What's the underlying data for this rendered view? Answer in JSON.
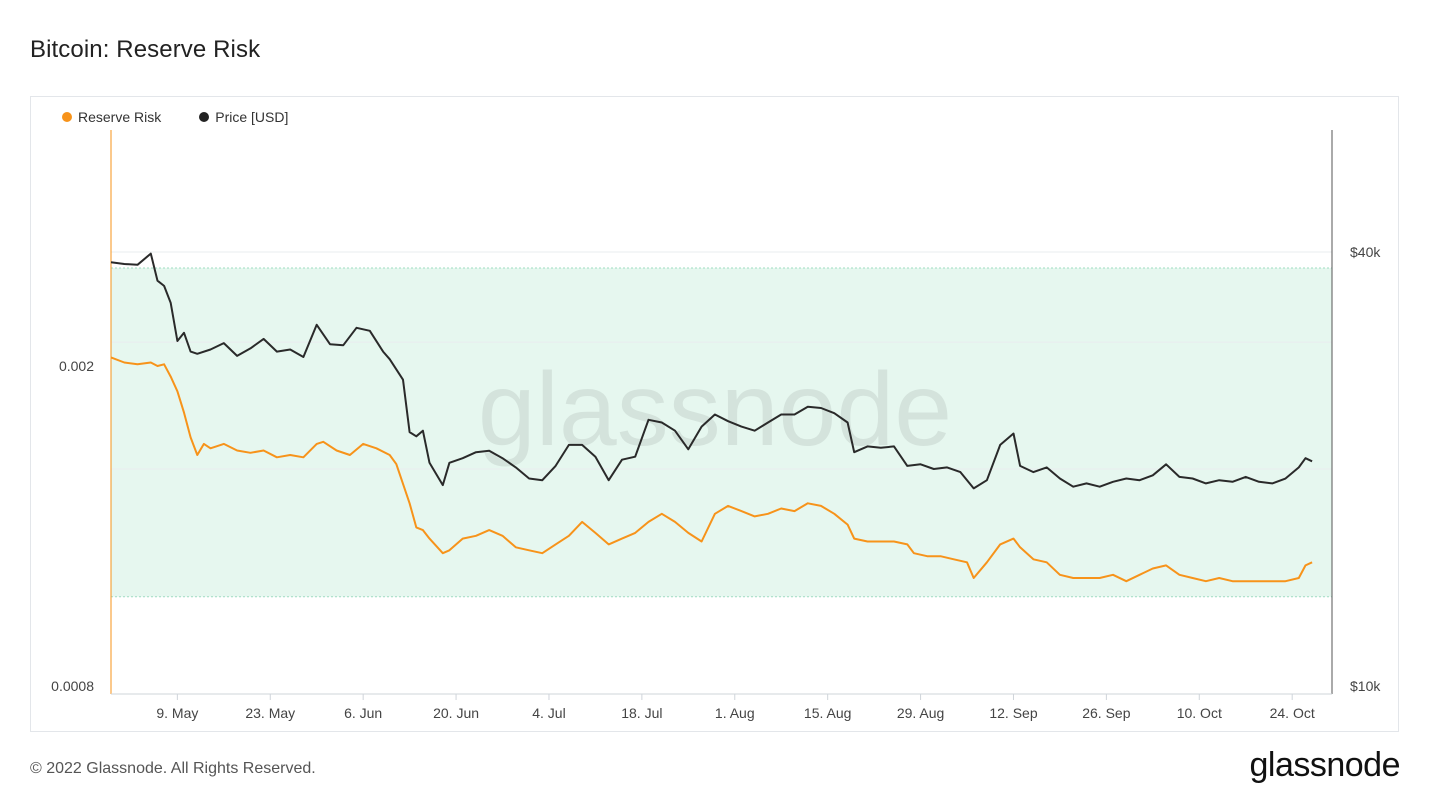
{
  "title": "Bitcoin: Reserve Risk",
  "legend": [
    {
      "label": "Reserve Risk",
      "color": "#f7931a"
    },
    {
      "label": "Price [USD]",
      "color": "#222222"
    }
  ],
  "watermark": "glassnode",
  "footer": {
    "copyright": "© 2022 Glassnode. All Rights Reserved.",
    "logo": "glassnode"
  },
  "colors": {
    "reserve_risk": "#f7931a",
    "price": "#2a2a2a",
    "band_fill": "#e6f7ef",
    "band_line": "#9fdcc2"
  },
  "chart_data": {
    "type": "line",
    "x_ticks": [
      "9. May",
      "23. May",
      "6. Jun",
      "20. Jun",
      "4. Jul",
      "18. Jul",
      "1. Aug",
      "15. Aug",
      "29. Aug",
      "12. Sep",
      "26. Sep",
      "10. Oct",
      "24. Oct"
    ],
    "x_range": [
      "2022-04-29",
      "2022-10-30"
    ],
    "y_left": {
      "ticks": [
        "0.002",
        "0.0008"
      ],
      "scale": "log",
      "range": [
        0.0008,
        0.00265
      ]
    },
    "y_right": {
      "ticks": [
        "$40k",
        "$10k"
      ],
      "scale": "log",
      "range": [
        10000,
        40000
      ]
    },
    "band": {
      "y_right_upper": 38000,
      "y_right_lower": 13300
    },
    "series": [
      {
        "name": "Reserve Risk",
        "axis": "left",
        "points": [
          [
            "2022-04-29",
            0.00205
          ],
          [
            "2022-05-01",
            0.00202
          ],
          [
            "2022-05-03",
            0.00201
          ],
          [
            "2022-05-05",
            0.00202
          ],
          [
            "2022-05-06",
            0.002
          ],
          [
            "2022-05-07",
            0.00201
          ],
          [
            "2022-05-08",
            0.00194
          ],
          [
            "2022-05-09",
            0.00186
          ],
          [
            "2022-05-10",
            0.00175
          ],
          [
            "2022-05-11",
            0.00163
          ],
          [
            "2022-05-12",
            0.00155
          ],
          [
            "2022-05-13",
            0.0016
          ],
          [
            "2022-05-14",
            0.00158
          ],
          [
            "2022-05-16",
            0.0016
          ],
          [
            "2022-05-18",
            0.00157
          ],
          [
            "2022-05-20",
            0.00156
          ],
          [
            "2022-05-22",
            0.00157
          ],
          [
            "2022-05-24",
            0.00154
          ],
          [
            "2022-05-26",
            0.00155
          ],
          [
            "2022-05-28",
            0.00154
          ],
          [
            "2022-05-30",
            0.0016
          ],
          [
            "2022-05-31",
            0.00161
          ],
          [
            "2022-06-02",
            0.00157
          ],
          [
            "2022-06-04",
            0.00155
          ],
          [
            "2022-06-06",
            0.0016
          ],
          [
            "2022-06-08",
            0.00158
          ],
          [
            "2022-06-10",
            0.00155
          ],
          [
            "2022-06-11",
            0.00151
          ],
          [
            "2022-06-13",
            0.00135
          ],
          [
            "2022-06-14",
            0.00126
          ],
          [
            "2022-06-15",
            0.00125
          ],
          [
            "2022-06-16",
            0.00122
          ],
          [
            "2022-06-18",
            0.00117
          ],
          [
            "2022-06-19",
            0.00118
          ],
          [
            "2022-06-21",
            0.00122
          ],
          [
            "2022-06-23",
            0.00123
          ],
          [
            "2022-06-25",
            0.00125
          ],
          [
            "2022-06-27",
            0.00123
          ],
          [
            "2022-06-29",
            0.00119
          ],
          [
            "2022-07-01",
            0.00118
          ],
          [
            "2022-07-03",
            0.00117
          ],
          [
            "2022-07-05",
            0.0012
          ],
          [
            "2022-07-07",
            0.00123
          ],
          [
            "2022-07-09",
            0.00128
          ],
          [
            "2022-07-11",
            0.00124
          ],
          [
            "2022-07-13",
            0.0012
          ],
          [
            "2022-07-15",
            0.00122
          ],
          [
            "2022-07-17",
            0.00124
          ],
          [
            "2022-07-19",
            0.00128
          ],
          [
            "2022-07-21",
            0.00131
          ],
          [
            "2022-07-23",
            0.00128
          ],
          [
            "2022-07-25",
            0.00124
          ],
          [
            "2022-07-27",
            0.00121
          ],
          [
            "2022-07-29",
            0.00131
          ],
          [
            "2022-07-31",
            0.00134
          ],
          [
            "2022-08-02",
            0.00132
          ],
          [
            "2022-08-04",
            0.0013
          ],
          [
            "2022-08-06",
            0.00131
          ],
          [
            "2022-08-08",
            0.00133
          ],
          [
            "2022-08-10",
            0.00132
          ],
          [
            "2022-08-12",
            0.00135
          ],
          [
            "2022-08-14",
            0.00134
          ],
          [
            "2022-08-16",
            0.00131
          ],
          [
            "2022-08-18",
            0.00127
          ],
          [
            "2022-08-19",
            0.00122
          ],
          [
            "2022-08-21",
            0.00121
          ],
          [
            "2022-08-23",
            0.00121
          ],
          [
            "2022-08-25",
            0.00121
          ],
          [
            "2022-08-27",
            0.0012
          ],
          [
            "2022-08-28",
            0.00117
          ],
          [
            "2022-08-30",
            0.00116
          ],
          [
            "2022-09-01",
            0.00116
          ],
          [
            "2022-09-03",
            0.00115
          ],
          [
            "2022-09-05",
            0.00114
          ],
          [
            "2022-09-06",
            0.00109
          ],
          [
            "2022-09-08",
            0.00114
          ],
          [
            "2022-09-10",
            0.0012
          ],
          [
            "2022-09-12",
            0.00122
          ],
          [
            "2022-09-13",
            0.00119
          ],
          [
            "2022-09-15",
            0.00115
          ],
          [
            "2022-09-17",
            0.00114
          ],
          [
            "2022-09-19",
            0.0011
          ],
          [
            "2022-09-21",
            0.00109
          ],
          [
            "2022-09-23",
            0.00109
          ],
          [
            "2022-09-25",
            0.00109
          ],
          [
            "2022-09-27",
            0.0011
          ],
          [
            "2022-09-29",
            0.00108
          ],
          [
            "2022-10-01",
            0.0011
          ],
          [
            "2022-10-03",
            0.00112
          ],
          [
            "2022-10-05",
            0.00113
          ],
          [
            "2022-10-07",
            0.0011
          ],
          [
            "2022-10-09",
            0.00109
          ],
          [
            "2022-10-11",
            0.00108
          ],
          [
            "2022-10-13",
            0.00109
          ],
          [
            "2022-10-15",
            0.00108
          ],
          [
            "2022-10-17",
            0.00108
          ],
          [
            "2022-10-19",
            0.00108
          ],
          [
            "2022-10-21",
            0.00108
          ],
          [
            "2022-10-23",
            0.00108
          ],
          [
            "2022-10-25",
            0.00109
          ],
          [
            "2022-10-26",
            0.00113
          ],
          [
            "2022-10-27",
            0.00114
          ]
        ]
      },
      {
        "name": "Price [USD]",
        "axis": "right",
        "points": [
          [
            "2022-04-29",
            38700
          ],
          [
            "2022-05-01",
            38500
          ],
          [
            "2022-05-03",
            38400
          ],
          [
            "2022-05-05",
            39800
          ],
          [
            "2022-05-06",
            36500
          ],
          [
            "2022-05-07",
            35900
          ],
          [
            "2022-05-08",
            34000
          ],
          [
            "2022-05-09",
            30100
          ],
          [
            "2022-05-10",
            30900
          ],
          [
            "2022-05-11",
            29100
          ],
          [
            "2022-05-12",
            28900
          ],
          [
            "2022-05-14",
            29300
          ],
          [
            "2022-05-16",
            29900
          ],
          [
            "2022-05-18",
            28700
          ],
          [
            "2022-05-20",
            29400
          ],
          [
            "2022-05-22",
            30300
          ],
          [
            "2022-05-24",
            29100
          ],
          [
            "2022-05-26",
            29300
          ],
          [
            "2022-05-28",
            28600
          ],
          [
            "2022-05-30",
            31700
          ],
          [
            "2022-06-01",
            29800
          ],
          [
            "2022-06-03",
            29700
          ],
          [
            "2022-06-05",
            31400
          ],
          [
            "2022-06-07",
            31100
          ],
          [
            "2022-06-09",
            29100
          ],
          [
            "2022-06-10",
            28400
          ],
          [
            "2022-06-12",
            26600
          ],
          [
            "2022-06-13",
            22500
          ],
          [
            "2022-06-14",
            22200
          ],
          [
            "2022-06-15",
            22600
          ],
          [
            "2022-06-16",
            20400
          ],
          [
            "2022-06-18",
            19000
          ],
          [
            "2022-06-19",
            20400
          ],
          [
            "2022-06-21",
            20700
          ],
          [
            "2022-06-23",
            21100
          ],
          [
            "2022-06-25",
            21200
          ],
          [
            "2022-06-27",
            20700
          ],
          [
            "2022-06-29",
            20100
          ],
          [
            "2022-07-01",
            19400
          ],
          [
            "2022-07-03",
            19300
          ],
          [
            "2022-07-05",
            20200
          ],
          [
            "2022-07-07",
            21600
          ],
          [
            "2022-07-09",
            21600
          ],
          [
            "2022-07-11",
            20800
          ],
          [
            "2022-07-13",
            19300
          ],
          [
            "2022-07-15",
            20600
          ],
          [
            "2022-07-17",
            20800
          ],
          [
            "2022-07-19",
            23400
          ],
          [
            "2022-07-21",
            23200
          ],
          [
            "2022-07-23",
            22600
          ],
          [
            "2022-07-25",
            21300
          ],
          [
            "2022-07-27",
            22900
          ],
          [
            "2022-07-29",
            23800
          ],
          [
            "2022-07-31",
            23300
          ],
          [
            "2022-08-02",
            22900
          ],
          [
            "2022-08-04",
            22600
          ],
          [
            "2022-08-06",
            23200
          ],
          [
            "2022-08-08",
            23800
          ],
          [
            "2022-08-10",
            23800
          ],
          [
            "2022-08-12",
            24400
          ],
          [
            "2022-08-14",
            24300
          ],
          [
            "2022-08-16",
            23900
          ],
          [
            "2022-08-18",
            23200
          ],
          [
            "2022-08-19",
            21100
          ],
          [
            "2022-08-21",
            21500
          ],
          [
            "2022-08-23",
            21400
          ],
          [
            "2022-08-25",
            21500
          ],
          [
            "2022-08-27",
            20200
          ],
          [
            "2022-08-29",
            20300
          ],
          [
            "2022-08-31",
            20000
          ],
          [
            "2022-09-02",
            20100
          ],
          [
            "2022-09-04",
            19800
          ],
          [
            "2022-09-06",
            18800
          ],
          [
            "2022-09-08",
            19300
          ],
          [
            "2022-09-10",
            21600
          ],
          [
            "2022-09-12",
            22400
          ],
          [
            "2022-09-13",
            20200
          ],
          [
            "2022-09-15",
            19800
          ],
          [
            "2022-09-17",
            20100
          ],
          [
            "2022-09-19",
            19400
          ],
          [
            "2022-09-21",
            18900
          ],
          [
            "2022-09-23",
            19100
          ],
          [
            "2022-09-25",
            18900
          ],
          [
            "2022-09-27",
            19200
          ],
          [
            "2022-09-29",
            19400
          ],
          [
            "2022-10-01",
            19300
          ],
          [
            "2022-10-03",
            19600
          ],
          [
            "2022-10-05",
            20300
          ],
          [
            "2022-10-07",
            19500
          ],
          [
            "2022-10-09",
            19400
          ],
          [
            "2022-10-11",
            19100
          ],
          [
            "2022-10-13",
            19300
          ],
          [
            "2022-10-15",
            19200
          ],
          [
            "2022-10-17",
            19500
          ],
          [
            "2022-10-19",
            19200
          ],
          [
            "2022-10-21",
            19100
          ],
          [
            "2022-10-23",
            19400
          ],
          [
            "2022-10-25",
            20100
          ],
          [
            "2022-10-26",
            20700
          ],
          [
            "2022-10-27",
            20500
          ]
        ]
      }
    ]
  }
}
